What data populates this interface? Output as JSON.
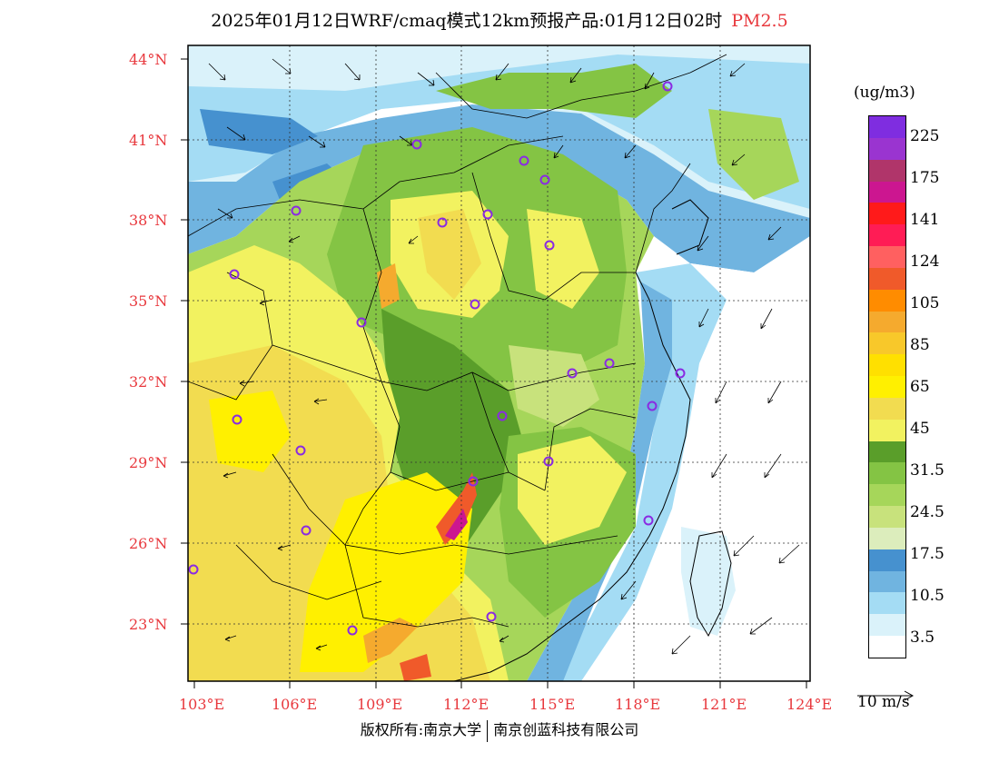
{
  "title": {
    "text": "2025年01月12日WRF/cmaq模式12km预报产品:01月12日02时",
    "pollutant": "PM2.5"
  },
  "axes": {
    "lat_labels": [
      "44°N",
      "41°N",
      "38°N",
      "35°N",
      "32°N",
      "29°N",
      "26°N",
      "23°N"
    ],
    "lon_labels": [
      "103°E",
      "106°E",
      "109°E",
      "112°E",
      "115°E",
      "118°E",
      "121°E",
      "124°E"
    ]
  },
  "legend": {
    "unit": "(ug/m3)",
    "levels": [
      "225",
      "175",
      "141",
      "124",
      "105",
      "85",
      "65",
      "45",
      "31.5",
      "24.5",
      "17.5",
      "10.5",
      "3.5"
    ],
    "colors": [
      "#7f2de0",
      "#9a34d0",
      "#b0356a",
      "#cc1690",
      "#ff1a1a",
      "#ff1c55",
      "#ff6060",
      "#f05a2a",
      "#ff8c00",
      "#f5aa2e",
      "#f8c82a",
      "#ffe000",
      "#fff000",
      "#f2dc50",
      "#f2f260",
      "#5a9e2a",
      "#84c444",
      "#a6d65a",
      "#c8e27c",
      "#dcedbc",
      "#4691cf",
      "#70b4e0",
      "#a4dcf4",
      "#daf2fa",
      "#ffffff"
    ]
  },
  "wind_reference": {
    "label": "10 m/s"
  },
  "footer": {
    "left": "版权所有:南京大学",
    "right": "南京创蓝科技有限公司"
  }
}
